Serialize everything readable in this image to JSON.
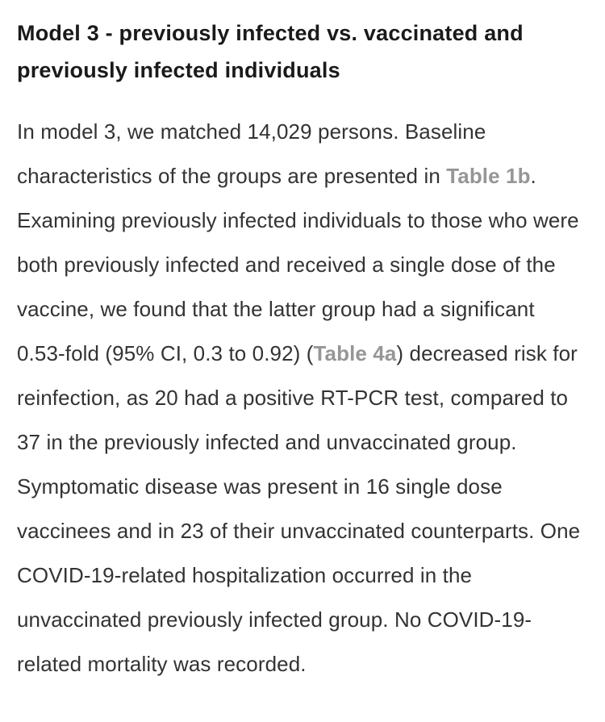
{
  "colors": {
    "background": "#ffffff",
    "heading": "#1a1a1a",
    "body": "#333333",
    "link": "#969696"
  },
  "heading": {
    "text": "Model 3 - previously infected vs. vaccinated and previously infected individuals"
  },
  "paragraph": {
    "segments": [
      {
        "type": "text",
        "text": "In model 3, we matched 14,029 persons. Baseline characteristics of the groups are presented in "
      },
      {
        "type": "link",
        "name": "table-1b-link",
        "text": "Table 1b"
      },
      {
        "type": "text",
        "text": ". Examining previously infected individuals to those who were both previously infected and received a single dose of the vaccine, we found that the latter group had a significant 0.53-fold (95% CI, 0.3 to 0.92) ("
      },
      {
        "type": "link",
        "name": "table-4a-link",
        "text": "Table 4a"
      },
      {
        "type": "text",
        "text": ") decreased risk for reinfection, as 20 had a positive RT-PCR test, compared to 37 in the previously infected and unvaccinated group. Symptomatic disease was present in 16 single dose vaccinees and in 23 of their unvaccinated counterparts. One COVID-19-related hospitalization occurred in the unvaccinated previously infected group. No COVID-19-related mortality was recorded."
      }
    ]
  }
}
